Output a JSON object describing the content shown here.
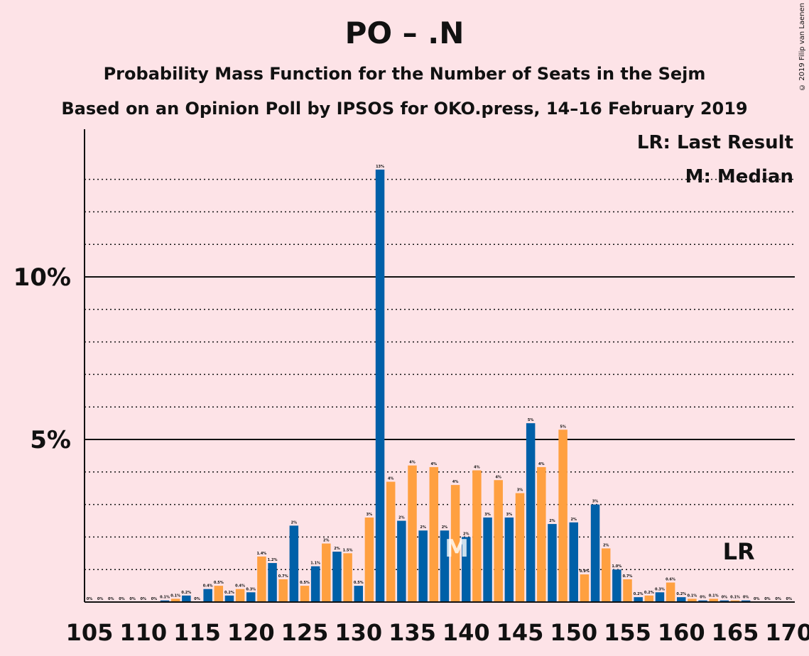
{
  "title": "PO – .N",
  "subtitle": "Probability Mass Function for the Number of Seats in the Sejm",
  "subtitle2": "Based on an Opinion Poll by IPSOS for OKO.press, 14–16 February 2019",
  "copyright": "© 2019 Filip van Laenen",
  "colors": {
    "background": "#FDE3E7",
    "blue": "#0060A8",
    "orange": "#FFA040",
    "text": "#111111"
  },
  "chart_data": {
    "type": "bar",
    "x": [
      105,
      106,
      107,
      108,
      109,
      110,
      111,
      112,
      113,
      114,
      115,
      116,
      117,
      118,
      119,
      120,
      121,
      122,
      123,
      124,
      125,
      126,
      127,
      128,
      129,
      130,
      131,
      132,
      133,
      134,
      135,
      136,
      137,
      138,
      139,
      140,
      141,
      142,
      143,
      144,
      145,
      146,
      147,
      148,
      149,
      150,
      151,
      152,
      153,
      154,
      155,
      156,
      157,
      158,
      159,
      160,
      161,
      162,
      163,
      164,
      165,
      166,
      167,
      168,
      169,
      170
    ],
    "values": [
      0,
      0,
      0,
      0,
      0,
      0,
      0,
      0.05,
      0.1,
      0.2,
      0,
      0.4,
      0.5,
      0.2,
      0.4,
      0.3,
      1.4,
      1.2,
      0.7,
      2.35,
      0.5,
      1.1,
      1.8,
      1.55,
      1.5,
      0.5,
      2.6,
      13.3,
      3.7,
      2.5,
      4.2,
      2.2,
      4.15,
      2.2,
      3.6,
      2.0,
      4.05,
      2.6,
      3.75,
      2.6,
      3.35,
      5.5,
      4.15,
      2.4,
      5.3,
      2.45,
      0.85,
      3.0,
      1.65,
      1.0,
      0.7,
      0.15,
      0.2,
      0.3,
      0.6,
      0.15,
      0.1,
      0.05,
      0.1,
      0.05,
      0.05,
      0.05,
      0,
      0,
      0,
      0
    ],
    "labels": [
      "0%",
      "0%",
      "0%",
      "0%",
      "0%",
      "0%",
      "0%",
      "0.1%",
      "0.1%",
      "0.2%",
      "0%",
      "0.4%",
      "0.5%",
      "0.2%",
      "0.4%",
      "0.3%",
      "1.4%",
      "1.2%",
      "0.7%",
      "2%",
      "0.5%",
      "1.1%",
      "2%",
      "2%",
      "1.5%",
      "0.5%",
      "3%",
      "13%",
      "4%",
      "2%",
      "4%",
      "2%",
      "4%",
      "2%",
      "4%",
      "2%",
      "4%",
      "3%",
      "4%",
      "3%",
      "3%",
      "5%",
      "4%",
      "2%",
      "5%",
      "2%",
      "0.9%",
      "3%",
      "2%",
      "1.0%",
      "0.7%",
      "0.2%",
      "0.2%",
      "0.3%",
      "0.6%",
      "0.2%",
      "0.1%",
      "0%",
      "0.1%",
      "0%",
      "0.1%",
      "0%",
      "0%",
      "0%",
      "0%",
      "0%"
    ],
    "x_ticks": [
      "105",
      "110",
      "115",
      "120",
      "125",
      "130",
      "135",
      "140",
      "145",
      "150",
      "155",
      "160",
      "165",
      "170"
    ],
    "y_ticks": [
      "5%",
      "10%"
    ],
    "ylim": [
      0,
      14
    ],
    "median": 139,
    "median_label": "M",
    "last_result": 166,
    "last_result_label": "LR",
    "legend": [
      "LR: Last Result",
      "M: Median"
    ],
    "legend_position": "top-right",
    "grid": true
  }
}
